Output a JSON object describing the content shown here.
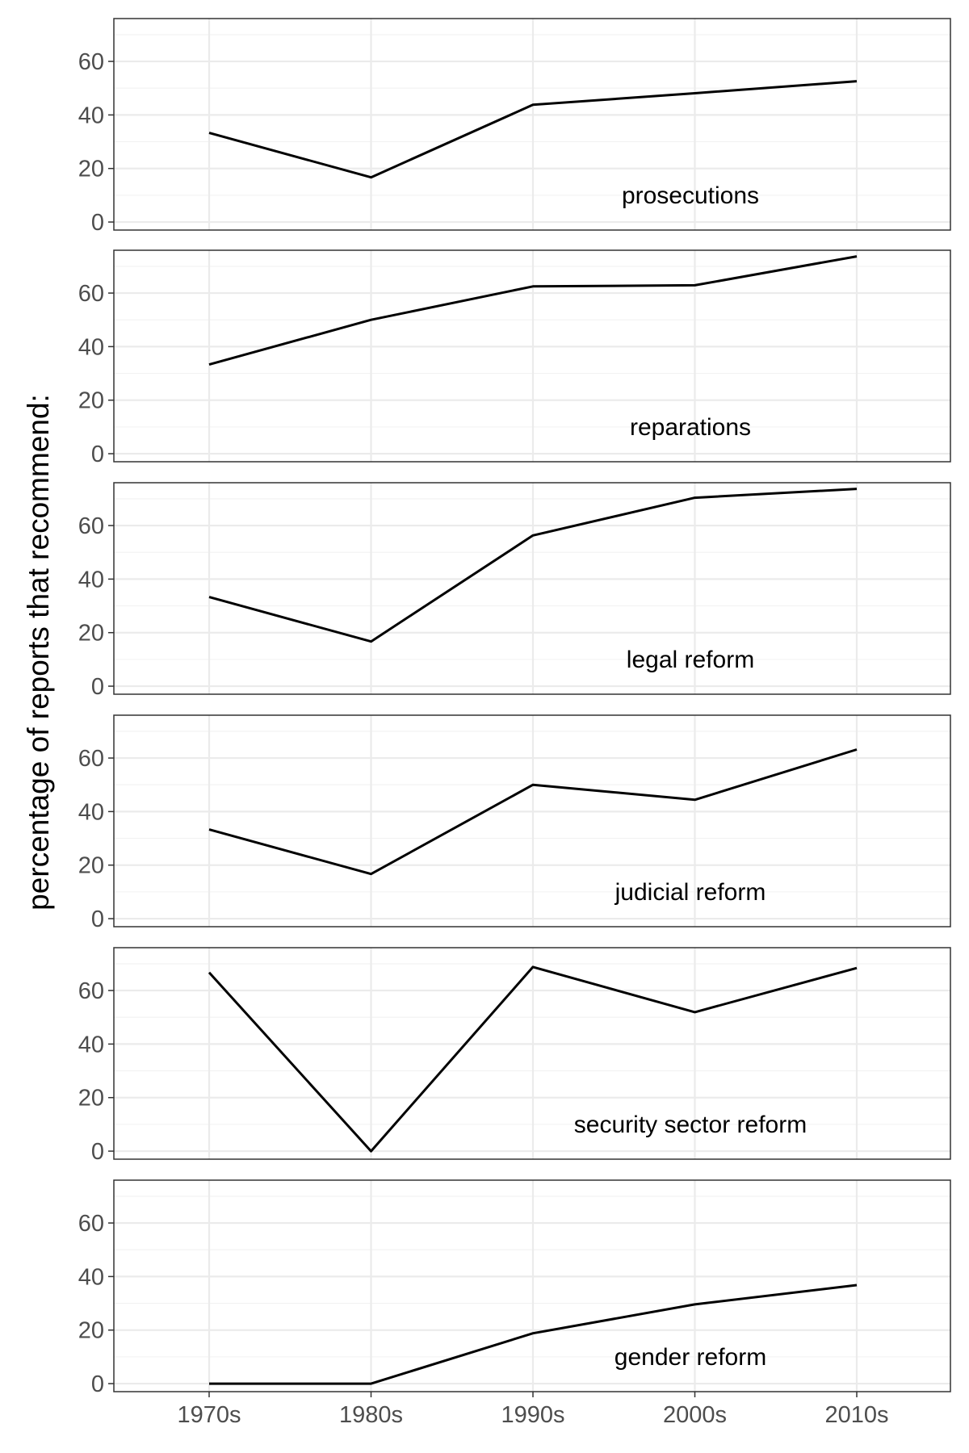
{
  "chart_data": {
    "type": "line",
    "ylabel": "percentage of reports that recommend:",
    "xlabel": "",
    "categories": [
      "1970s",
      "1980s",
      "1990s",
      "2000s",
      "2010s"
    ],
    "ylim": [
      -3,
      76
    ],
    "yticks": [
      0,
      20,
      40,
      60
    ],
    "grid": true,
    "colors": {
      "line": "#000000",
      "grid": "#ebebeb",
      "border": "#333333",
      "tick_text": "#4d4d4d"
    },
    "panels": [
      {
        "label": "prosecutions",
        "values": [
          33.3,
          16.7,
          43.8,
          48.1,
          52.6
        ]
      },
      {
        "label": "reparations",
        "values": [
          33.3,
          50.0,
          62.5,
          62.9,
          73.7
        ]
      },
      {
        "label": "legal reform",
        "values": [
          33.3,
          16.7,
          56.3,
          70.4,
          73.7
        ]
      },
      {
        "label": "judicial reform",
        "values": [
          33.3,
          16.7,
          50.0,
          44.4,
          63.2
        ]
      },
      {
        "label": "security sector reform",
        "values": [
          66.7,
          0.0,
          68.8,
          51.9,
          68.4
        ]
      },
      {
        "label": "gender reform",
        "values": [
          0.0,
          0.0,
          18.8,
          29.6,
          36.8
        ]
      }
    ]
  }
}
